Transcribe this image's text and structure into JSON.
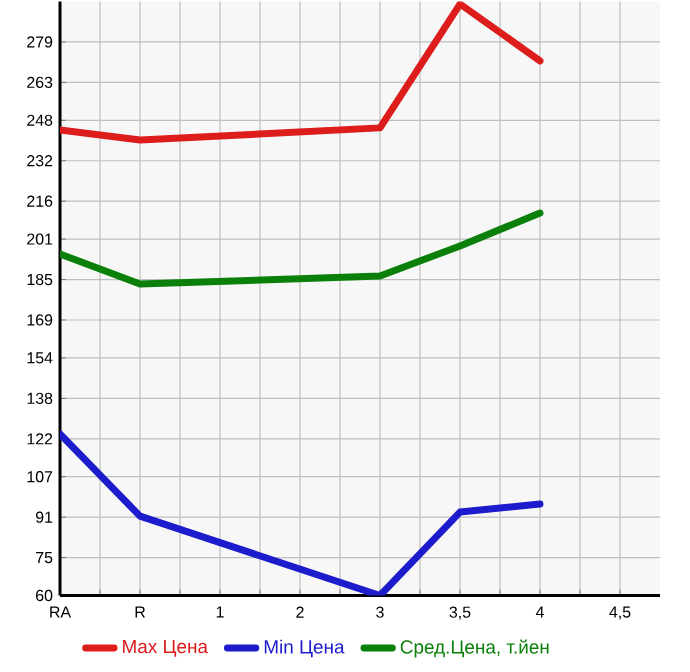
{
  "chart_data": {
    "type": "line",
    "categories": [
      "RA",
      "R",
      "1",
      "2",
      "3",
      "3,5",
      "4",
      "4,5"
    ],
    "series": [
      {
        "name": "Max Цена",
        "color": "#dd1c1c",
        "values": [
          244.2,
          240.2,
          null,
          null,
          245,
          294,
          271.5,
          null
        ]
      },
      {
        "name": "Min Цена",
        "color": "#1c1ccc",
        "values": [
          123.9,
          91.4,
          null,
          null,
          60,
          93,
          96.2,
          null
        ]
      },
      {
        "name": "Сред.Цена, т.йен",
        "color": "#0a800a",
        "values": [
          195.1,
          183.2,
          null,
          null,
          186.4,
          198.3,
          211.3,
          null
        ]
      }
    ],
    "ylim": [
      60,
      295
    ],
    "yticks": [
      60,
      75,
      91,
      107,
      122,
      138,
      154,
      169,
      185,
      201,
      216,
      232,
      248,
      263,
      279
    ],
    "grid": true,
    "legend": "bottom",
    "marker": "none",
    "line_style": "solid"
  }
}
